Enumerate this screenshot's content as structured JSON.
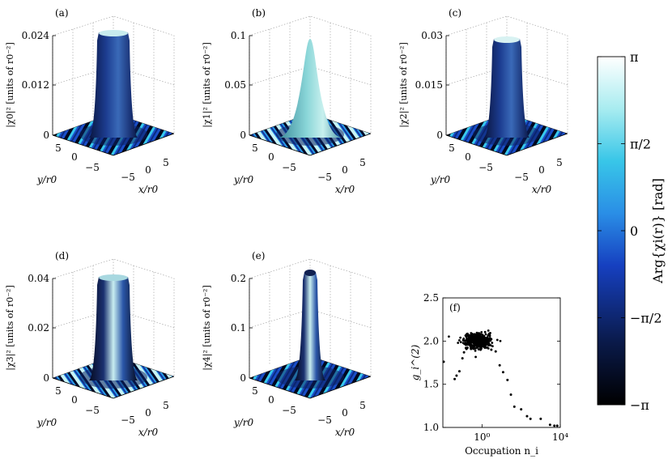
{
  "colors": {
    "cmap": [
      "#000000",
      "#0a1a4a",
      "#1640c0",
      "#2aa0e8",
      "#7ad8e0",
      "#eaf8f8",
      "#ffffff"
    ]
  },
  "panels": [
    {
      "tag": "(a)",
      "zlabel": "|χ0|² [units of r0⁻²]",
      "zticks": [
        "0",
        "0.012",
        "0.024"
      ],
      "xlabel": "x/r0",
      "ylabel": "y/r0",
      "xticks": [
        "−5",
        "0",
        "5"
      ],
      "yticks": [
        "5",
        "0",
        "−5"
      ]
    },
    {
      "tag": "(b)",
      "zlabel": "|χ1|² [units of r0⁻²]",
      "zticks": [
        "0",
        "0.05",
        "0.1"
      ],
      "xlabel": "x/r0",
      "ylabel": "y/r0",
      "xticks": [
        "−5",
        "0",
        "5"
      ],
      "yticks": [
        "5",
        "0",
        "−5"
      ]
    },
    {
      "tag": "(c)",
      "zlabel": "|χ2|² [units of r0⁻²]",
      "zticks": [
        "0",
        "0.015",
        "0.03"
      ],
      "xlabel": "x/r0",
      "ylabel": "y/r0",
      "xticks": [
        "−5",
        "0",
        "5"
      ],
      "yticks": [
        "5",
        "0",
        "−5"
      ]
    },
    {
      "tag": "(d)",
      "zlabel": "|χ3|² [units of r0⁻²]",
      "zticks": [
        "0",
        "0.02",
        "0.04"
      ],
      "xlabel": "x/r0",
      "ylabel": "y/r0",
      "xticks": [
        "−5",
        "0",
        "5"
      ],
      "yticks": [
        "5",
        "0",
        "−5"
      ]
    },
    {
      "tag": "(e)",
      "zlabel": "|χ4|² [units of r0⁻²]",
      "zticks": [
        "0",
        "0.1",
        "0.2"
      ],
      "xlabel": "x/r0",
      "ylabel": "y/r0",
      "xticks": [
        "−5",
        "0",
        "5"
      ],
      "yticks": [
        "5",
        "0",
        "−5"
      ]
    }
  ],
  "scatter": {
    "tag": "(f)",
    "ylabel": "g_i^(2)",
    "xlabel": "Occupation n_i",
    "yticks": [
      "1.0",
      "1.5",
      "2.0",
      "2.5"
    ],
    "xticks": [
      "10⁰",
      "10⁴"
    ]
  },
  "colorbar": {
    "label": "Arg{χi(r)} [rad]",
    "ticks": [
      "π",
      "π/2",
      "0",
      "−π/2",
      "−π"
    ]
  },
  "chart_data": [
    {
      "type": "surface",
      "tag": "(a)",
      "zlim": [
        0,
        0.024
      ],
      "xlim": [
        -8,
        8
      ],
      "ylim": [
        -8,
        8
      ]
    },
    {
      "type": "surface",
      "tag": "(b)",
      "zlim": [
        0,
        0.1
      ],
      "xlim": [
        -8,
        8
      ],
      "ylim": [
        -8,
        8
      ]
    },
    {
      "type": "surface",
      "tag": "(c)",
      "zlim": [
        0,
        0.03
      ],
      "xlim": [
        -8,
        8
      ],
      "ylim": [
        -8,
        8
      ]
    },
    {
      "type": "surface",
      "tag": "(d)",
      "zlim": [
        0,
        0.04
      ],
      "xlim": [
        -8,
        8
      ],
      "ylim": [
        -8,
        8
      ]
    },
    {
      "type": "surface",
      "tag": "(e)",
      "zlim": [
        0,
        0.2
      ],
      "xlim": [
        -8,
        8
      ],
      "ylim": [
        -8,
        8
      ]
    },
    {
      "type": "scatter",
      "tag": "(f)",
      "xscale": "log",
      "xlim": [
        0.01,
        10000
      ],
      "ylim": [
        1.0,
        2.5
      ],
      "cluster": {
        "x_center": 0.6,
        "y_center": 2.0,
        "x_spread_decades": 0.35,
        "y_spread": 0.07
      },
      "points": [
        [
          0.011,
          1.76
        ],
        [
          0.04,
          1.56
        ],
        [
          0.05,
          1.6
        ],
        [
          0.07,
          1.65
        ],
        [
          0.1,
          1.8
        ],
        [
          0.12,
          1.87
        ],
        [
          0.15,
          1.92
        ],
        [
          2.0,
          1.96
        ],
        [
          3.0,
          1.9
        ],
        [
          5.0,
          1.88
        ],
        [
          8.0,
          1.72
        ],
        [
          12.0,
          1.64
        ],
        [
          20.0,
          1.55
        ],
        [
          30.0,
          1.38
        ],
        [
          45.0,
          1.24
        ],
        [
          100.0,
          1.21
        ],
        [
          200.0,
          1.13
        ],
        [
          300.0,
          1.1
        ],
        [
          1000.0,
          1.1
        ],
        [
          3000.0,
          1.03
        ],
        [
          5000.0,
          1.02
        ],
        [
          7000.0,
          1.02
        ]
      ]
    },
    {
      "type": "colorbar",
      "range": [
        "−π",
        "π"
      ]
    }
  ]
}
